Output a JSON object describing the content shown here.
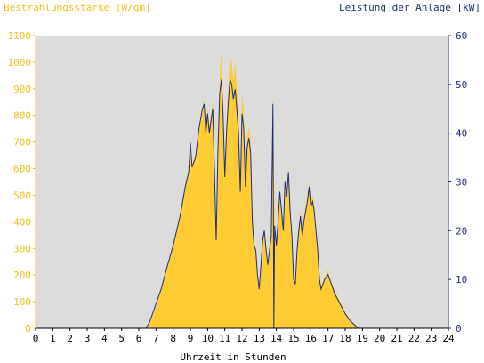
{
  "chart_data": {
    "type": "area",
    "ylabel_left": "Bestrahlungsstärke [W/qm]",
    "ylabel_right": "Leistung der Anlage [kW]",
    "xlabel": "Uhrzeit in Stunden",
    "xlim": [
      0,
      24
    ],
    "ylim_left": [
      0,
      1100
    ],
    "ylim_right": [
      0,
      60
    ],
    "x_ticks": [
      "0",
      "1",
      "2",
      "3",
      "4",
      "5",
      "6",
      "7",
      "8",
      "9",
      "10",
      "11",
      "12",
      "13",
      "14",
      "15",
      "16",
      "17",
      "18",
      "19",
      "20",
      "21",
      "22",
      "23",
      "24"
    ],
    "yl_ticks": [
      "0",
      "100",
      "200",
      "300",
      "400",
      "500",
      "600",
      "700",
      "800",
      "900",
      "1000",
      "1100"
    ],
    "yr_ticks": [
      "0",
      "10",
      "20",
      "30",
      "40",
      "50",
      "60"
    ],
    "grid": false,
    "colors": {
      "irradiance": "#ffcc33",
      "power": "#1f2f7a",
      "plot_bg": "#dcdcdc",
      "left_axis": "#f0c020",
      "right_axis": "#1f2f7a"
    },
    "series": [
      {
        "name": "Bestrahlungsstärke [W/qm]",
        "axis": "left",
        "points": [
          [
            0,
            0
          ],
          [
            6.3,
            0
          ],
          [
            6.5,
            5
          ],
          [
            6.7,
            30
          ],
          [
            7.0,
            80
          ],
          [
            7.3,
            150
          ],
          [
            7.6,
            220
          ],
          [
            8.0,
            320
          ],
          [
            8.4,
            430
          ],
          [
            8.7,
            540
          ],
          [
            8.9,
            600
          ],
          [
            9.0,
            700
          ],
          [
            9.1,
            620
          ],
          [
            9.3,
            650
          ],
          [
            9.5,
            760
          ],
          [
            9.6,
            780
          ],
          [
            9.7,
            820
          ],
          [
            9.8,
            860
          ],
          [
            9.9,
            740
          ],
          [
            10.0,
            830
          ],
          [
            10.1,
            760
          ],
          [
            10.3,
            850
          ],
          [
            10.4,
            600
          ],
          [
            10.5,
            360
          ],
          [
            10.6,
            680
          ],
          [
            10.7,
            940
          ],
          [
            10.8,
            1040
          ],
          [
            10.9,
            860
          ],
          [
            11.0,
            600
          ],
          [
            11.1,
            780
          ],
          [
            11.2,
            900
          ],
          [
            11.3,
            1020
          ],
          [
            11.4,
            1000
          ],
          [
            11.5,
            930
          ],
          [
            11.6,
            1000
          ],
          [
            11.7,
            900
          ],
          [
            11.8,
            800
          ],
          [
            11.9,
            540
          ],
          [
            12.0,
            880
          ],
          [
            12.1,
            820
          ],
          [
            12.2,
            560
          ],
          [
            12.3,
            720
          ],
          [
            12.4,
            760
          ],
          [
            12.5,
            700
          ],
          [
            12.6,
            420
          ],
          [
            12.7,
            320
          ],
          [
            12.8,
            300
          ],
          [
            12.9,
            200
          ],
          [
            13.0,
            160
          ],
          [
            13.1,
            240
          ],
          [
            13.2,
            340
          ],
          [
            13.3,
            380
          ],
          [
            13.4,
            300
          ],
          [
            13.5,
            250
          ],
          [
            13.6,
            300
          ],
          [
            13.7,
            360
          ],
          [
            13.8,
            890
          ],
          [
            13.9,
            400
          ],
          [
            14.0,
            320
          ],
          [
            14.1,
            420
          ],
          [
            14.2,
            520
          ],
          [
            14.3,
            440
          ],
          [
            14.4,
            380
          ],
          [
            14.5,
            560
          ],
          [
            14.6,
            500
          ],
          [
            14.7,
            610
          ],
          [
            14.8,
            440
          ],
          [
            14.9,
            360
          ],
          [
            15.0,
            200
          ],
          [
            15.1,
            180
          ],
          [
            15.2,
            300
          ],
          [
            15.3,
            380
          ],
          [
            15.4,
            440
          ],
          [
            15.5,
            360
          ],
          [
            15.6,
            420
          ],
          [
            15.8,
            500
          ],
          [
            15.9,
            550
          ],
          [
            16.0,
            480
          ],
          [
            16.1,
            500
          ],
          [
            16.2,
            460
          ],
          [
            16.3,
            380
          ],
          [
            16.4,
            300
          ],
          [
            16.5,
            200
          ],
          [
            16.6,
            160
          ],
          [
            16.8,
            190
          ],
          [
            17.0,
            220
          ],
          [
            17.1,
            190
          ],
          [
            17.4,
            140
          ],
          [
            17.7,
            100
          ],
          [
            18.0,
            60
          ],
          [
            18.3,
            30
          ],
          [
            18.6,
            10
          ],
          [
            18.8,
            0
          ],
          [
            24,
            0
          ]
        ]
      },
      {
        "name": "Leistung der Anlage [kW]",
        "axis": "right",
        "points": [
          [
            0,
            0
          ],
          [
            6.4,
            0
          ],
          [
            6.6,
            1
          ],
          [
            6.8,
            3
          ],
          [
            7.0,
            5
          ],
          [
            7.3,
            8
          ],
          [
            7.6,
            12
          ],
          [
            8.0,
            17
          ],
          [
            8.4,
            23
          ],
          [
            8.7,
            29
          ],
          [
            8.9,
            32
          ],
          [
            9.0,
            38
          ],
          [
            9.1,
            33
          ],
          [
            9.3,
            35
          ],
          [
            9.5,
            41
          ],
          [
            9.6,
            43
          ],
          [
            9.7,
            45
          ],
          [
            9.8,
            46
          ],
          [
            9.9,
            40
          ],
          [
            10.0,
            44
          ],
          [
            10.1,
            40
          ],
          [
            10.3,
            45
          ],
          [
            10.4,
            32
          ],
          [
            10.5,
            18
          ],
          [
            10.6,
            36
          ],
          [
            10.7,
            48
          ],
          [
            10.8,
            51
          ],
          [
            10.9,
            44
          ],
          [
            11.0,
            31
          ],
          [
            11.1,
            40
          ],
          [
            11.2,
            46
          ],
          [
            11.3,
            51
          ],
          [
            11.4,
            50
          ],
          [
            11.5,
            47
          ],
          [
            11.6,
            49
          ],
          [
            11.7,
            45
          ],
          [
            11.8,
            40
          ],
          [
            11.9,
            28
          ],
          [
            12.0,
            44
          ],
          [
            12.1,
            41
          ],
          [
            12.2,
            29
          ],
          [
            12.3,
            37
          ],
          [
            12.4,
            39
          ],
          [
            12.5,
            36
          ],
          [
            12.6,
            22
          ],
          [
            12.7,
            17
          ],
          [
            12.8,
            16
          ],
          [
            12.9,
            11
          ],
          [
            13.0,
            8
          ],
          [
            13.1,
            13
          ],
          [
            13.2,
            18
          ],
          [
            13.3,
            20
          ],
          [
            13.4,
            16
          ],
          [
            13.5,
            13
          ],
          [
            13.6,
            16
          ],
          [
            13.7,
            19
          ],
          [
            13.8,
            46
          ],
          [
            13.85,
            0
          ],
          [
            13.9,
            21
          ],
          [
            14.0,
            17
          ],
          [
            14.1,
            22
          ],
          [
            14.2,
            28
          ],
          [
            14.3,
            24
          ],
          [
            14.4,
            20
          ],
          [
            14.5,
            30
          ],
          [
            14.6,
            27
          ],
          [
            14.7,
            32
          ],
          [
            14.8,
            24
          ],
          [
            14.9,
            19
          ],
          [
            15.0,
            10
          ],
          [
            15.1,
            9
          ],
          [
            15.2,
            16
          ],
          [
            15.3,
            20
          ],
          [
            15.4,
            23
          ],
          [
            15.5,
            19
          ],
          [
            15.6,
            22
          ],
          [
            15.8,
            26
          ],
          [
            15.9,
            29
          ],
          [
            16.0,
            25
          ],
          [
            16.1,
            26
          ],
          [
            16.2,
            24
          ],
          [
            16.3,
            20
          ],
          [
            16.4,
            16
          ],
          [
            16.5,
            10
          ],
          [
            16.6,
            8
          ],
          [
            16.8,
            10
          ],
          [
            17.0,
            11
          ],
          [
            17.1,
            10
          ],
          [
            17.4,
            7
          ],
          [
            17.7,
            5
          ],
          [
            18.0,
            3
          ],
          [
            18.3,
            1.5
          ],
          [
            18.6,
            0.5
          ],
          [
            18.8,
            0
          ],
          [
            24,
            0
          ]
        ]
      }
    ]
  }
}
